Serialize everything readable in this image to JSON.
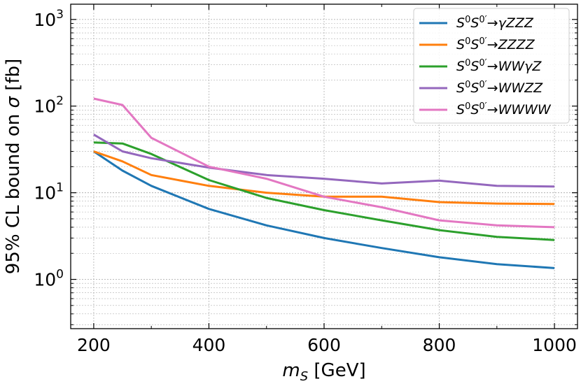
{
  "chart_data": {
    "type": "line",
    "title": "",
    "xlabel_main": "m",
    "xlabel_sub": "S",
    "xlabel_unit": "[GeV]",
    "ylabel_prefix": "95% CL bound on ",
    "ylabel_symbol": "σ",
    "ylabel_unit": "[fb]",
    "yscale": "log",
    "xlim": [
      160,
      1040
    ],
    "ylim": [
      0.27,
      1500
    ],
    "x": [
      200,
      250,
      300,
      400,
      500,
      600,
      700,
      800,
      900,
      1000
    ],
    "xticks": [
      200,
      400,
      600,
      800,
      1000
    ],
    "xtick_labels": [
      "200",
      "400",
      "600",
      "800",
      "1000"
    ],
    "yticks": [
      1,
      10,
      100,
      1000
    ],
    "ytick_labels": [
      {
        "base": "10",
        "exp": "0"
      },
      {
        "base": "10",
        "exp": "1"
      },
      {
        "base": "10",
        "exp": "2"
      },
      {
        "base": "10",
        "exp": "3"
      }
    ],
    "grid": true,
    "legend_position": "top-right",
    "series": [
      {
        "name": "S⁰S⁰′→γZZZ",
        "legend": {
          "a": "S",
          "a_sup": "0",
          "b": "S",
          "b_sup": "0′",
          "arrow": "→",
          "final": "γZZZ"
        },
        "color": "#1f77b4",
        "values": [
          30,
          18,
          12,
          6.5,
          4.2,
          3.0,
          2.3,
          1.8,
          1.5,
          1.35
        ]
      },
      {
        "name": "S⁰S⁰′→ZZZZ",
        "legend": {
          "a": "S",
          "a_sup": "0",
          "b": "S",
          "b_sup": "0′",
          "arrow": "→",
          "final": "ZZZZ"
        },
        "color": "#ff7f0e",
        "values": [
          30,
          23,
          16,
          12,
          10,
          9,
          9,
          7.8,
          7.5,
          7.4
        ]
      },
      {
        "name": "S⁰S⁰′→WWγZ",
        "legend": {
          "a": "S",
          "a_sup": "0",
          "b": "S",
          "b_sup": "0′",
          "arrow": "→",
          "final": "WWγZ"
        },
        "color": "#2ca02c",
        "values": [
          38,
          37,
          28,
          14,
          8.7,
          6.3,
          4.8,
          3.7,
          3.1,
          2.85
        ]
      },
      {
        "name": "S⁰S⁰′→WWZZ",
        "legend": {
          "a": "S",
          "a_sup": "0",
          "b": "S",
          "b_sup": "0′",
          "arrow": "→",
          "final": "WWZZ"
        },
        "color": "#9467bd",
        "values": [
          47,
          30,
          25,
          19.5,
          16,
          14.5,
          12.8,
          13.8,
          12,
          11.8
        ]
      },
      {
        "name": "S⁰S⁰′→WWWW",
        "legend": {
          "a": "S",
          "a_sup": "0",
          "b": "S",
          "b_sup": "0′",
          "arrow": "→",
          "final": "WWWW"
        },
        "color": "#e377c2",
        "values": [
          122,
          103,
          43,
          20,
          14.5,
          9,
          6.8,
          4.8,
          4.2,
          4.0
        ]
      }
    ]
  }
}
